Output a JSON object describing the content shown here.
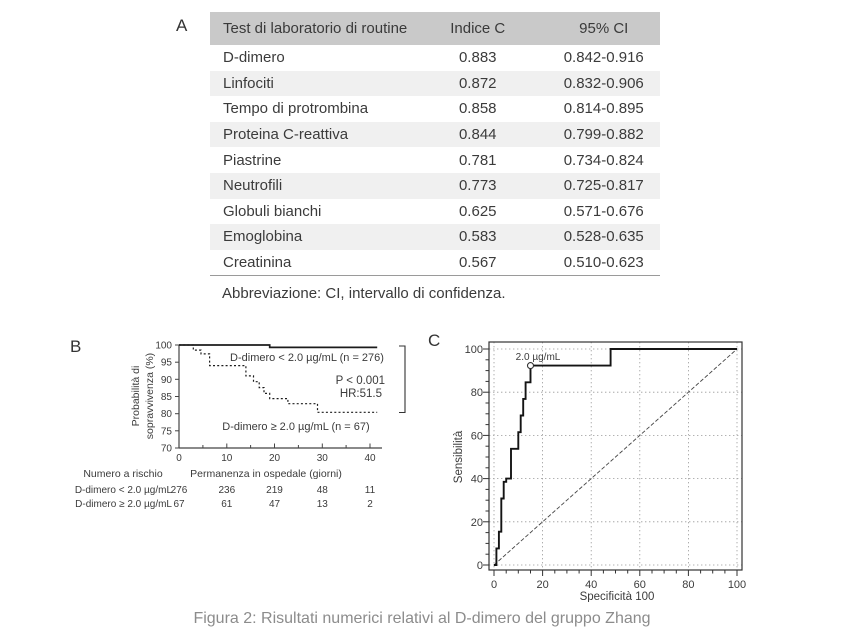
{
  "figure": {
    "caption": "Figura 2: Risultati numerici relativi al D-dimero del gruppo Zhang"
  },
  "panels": {
    "a": "A",
    "b": "B",
    "c": "C"
  },
  "colors": {
    "table_header_bg": "#c9c9c9",
    "table_alt_row_bg": "#f0f0f0",
    "text": "#3b3b3b",
    "caption_text": "#8c8c8c",
    "curve": "#1c1c1c",
    "axis": "#444444",
    "grid_dots": "#999999"
  },
  "chart_data": [
    {
      "type": "table",
      "panel": "A",
      "columns": [
        "Test di laboratorio di routine",
        "Indice C",
        "95% CI"
      ],
      "rows": [
        [
          "D-dimero",
          "0.883",
          "0.842-0.916"
        ],
        [
          "Linfociti",
          "0.872",
          "0.832-0.906"
        ],
        [
          "Tempo di protrombina",
          "0.858",
          "0.814-0.895"
        ],
        [
          "Proteina C-reattiva",
          "0.844",
          "0.799-0.882"
        ],
        [
          "Piastrine",
          "0.781",
          "0.734-0.824"
        ],
        [
          "Neutrofili",
          "0.773",
          "0.725-0.817"
        ],
        [
          "Globuli bianchi",
          "0.625",
          "0.571-0.676"
        ],
        [
          "Emoglobina",
          "0.583",
          "0.528-0.635"
        ],
        [
          "Creatinina",
          "0.567",
          "0.510-0.623"
        ]
      ],
      "footnote": "Abbreviazione: CI, intervallo di confidenza."
    },
    {
      "type": "line",
      "subtype": "kaplan-meier",
      "panel": "B",
      "xlabel": "Permanenza in ospedale (giorni)",
      "ylabel_lines": [
        "Probabilità di",
        "sopravvivenza (%)"
      ],
      "xlim": [
        0,
        42.5
      ],
      "ylim": [
        70,
        100
      ],
      "xticks": [
        0,
        10,
        20,
        30,
        40
      ],
      "xticks_minor": [
        5,
        15,
        25,
        35
      ],
      "yticks": [
        70,
        75,
        80,
        85,
        90,
        95,
        100
      ],
      "grid": false,
      "series": [
        {
          "name": "D-dimero < 2.0 µg/mL (n = 276)",
          "line": "solid",
          "points": [
            [
              0,
              100
            ],
            [
              19,
              100
            ],
            [
              19,
              99.3
            ],
            [
              41.5,
              99.3
            ]
          ]
        },
        {
          "name": "D-dimero ≥ 2.0 µg/mL (n = 67)",
          "line": "dashed",
          "points": [
            [
              0,
              100
            ],
            [
              3,
              100
            ],
            [
              3,
              98.5
            ],
            [
              4.6,
              98.5
            ],
            [
              4.6,
              97.4
            ],
            [
              6.4,
              97.4
            ],
            [
              6.4,
              94
            ],
            [
              14,
              94
            ],
            [
              14,
              91
            ],
            [
              15.6,
              91
            ],
            [
              15.6,
              89.3
            ],
            [
              16.8,
              89.3
            ],
            [
              16.8,
              87.6
            ],
            [
              17.8,
              87.6
            ],
            [
              17.8,
              85.9
            ],
            [
              19,
              85.9
            ],
            [
              19,
              84.4
            ],
            [
              22.8,
              84.4
            ],
            [
              22.8,
              82.9
            ],
            [
              29,
              82.9
            ],
            [
              29,
              80.4
            ],
            [
              41.5,
              80.4
            ]
          ]
        }
      ],
      "stats": {
        "p_value": "P < 0.001",
        "hazard_ratio": "HR:51.5"
      },
      "risk_table": {
        "title": "Numero a rischio",
        "times": [
          0,
          10,
          20,
          30,
          40
        ],
        "rows": [
          {
            "label": "D-dimero < 2.0 µg/mL",
            "values": [
              "276",
              "236",
              "219",
              "48",
              "11"
            ]
          },
          {
            "label": "D-dimero ≥ 2.0 µg/mL",
            "values": [
              "67",
              "61",
              "47",
              "13",
              "2"
            ]
          }
        ]
      }
    },
    {
      "type": "line",
      "subtype": "roc",
      "panel": "C",
      "xlabel": "Specificità 100",
      "ylabel": "Sensibilità",
      "xlim": [
        0,
        100
      ],
      "ylim": [
        0,
        100
      ],
      "xticks": [
        0,
        20,
        40,
        60,
        80,
        100
      ],
      "yticks": [
        0,
        20,
        40,
        60,
        80,
        100
      ],
      "minor_tick_step": 5,
      "grid": true,
      "diagonal": true,
      "curve": [
        [
          0,
          0
        ],
        [
          1,
          0
        ],
        [
          1,
          7.7
        ],
        [
          2,
          7.7
        ],
        [
          2,
          15.4
        ],
        [
          3,
          15.4
        ],
        [
          3,
          30.8
        ],
        [
          4,
          30.8
        ],
        [
          4,
          38.5
        ],
        [
          5,
          38.5
        ],
        [
          5,
          40
        ],
        [
          7,
          40
        ],
        [
          7,
          53.8
        ],
        [
          10,
          53.8
        ],
        [
          10,
          61.5
        ],
        [
          11,
          61.5
        ],
        [
          11,
          69.2
        ],
        [
          12,
          69.2
        ],
        [
          12,
          76.9
        ],
        [
          13,
          76.9
        ],
        [
          13,
          84.6
        ],
        [
          15,
          84.6
        ],
        [
          15,
          92.3
        ],
        [
          48,
          92.3
        ],
        [
          48,
          100
        ],
        [
          100,
          100
        ]
      ],
      "cutoff": {
        "label": "2.0 µg/mL",
        "x": 15,
        "y": 92.3
      }
    }
  ]
}
